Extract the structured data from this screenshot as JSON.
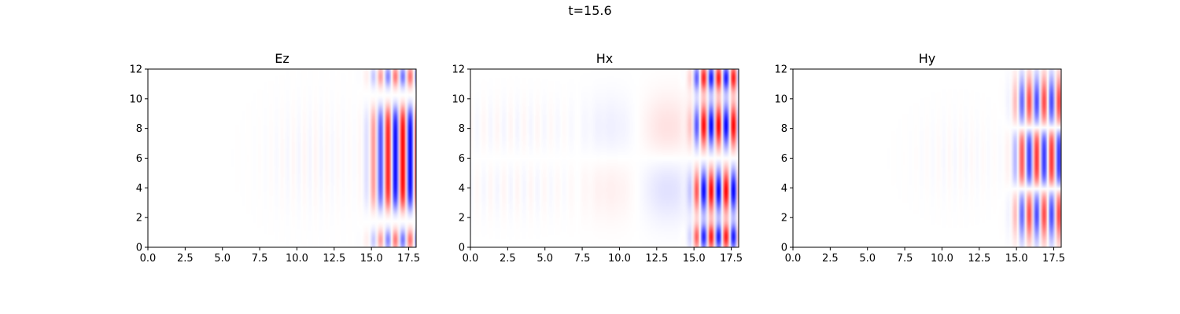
{
  "figure": {
    "suptitle": "t=15.6"
  },
  "colors": {
    "positive": "#ff0000",
    "negative": "#0000ff",
    "zero": "#ffffff",
    "axis": "#000000"
  },
  "chart_data": [
    {
      "type": "heatmap",
      "title": "Ez",
      "colormap": "bwr",
      "xlim": [
        0,
        18
      ],
      "ylim": [
        0,
        12
      ],
      "xticks": [
        "0.0",
        "2.5",
        "5.0",
        "7.5",
        "10.0",
        "12.5",
        "15.0",
        "17.5"
      ],
      "yticks": [
        "0",
        "2",
        "4",
        "6",
        "8",
        "10",
        "12"
      ],
      "grid": false,
      "field": {
        "wave_front_x": 15.0,
        "wavelength": 1.0,
        "vertical_mode": "single lobe centered at y=6 with weak sign-flipped edges near y=0 and y=12",
        "peak_amplitude": 1.0,
        "trail_amplitude": 0.04
      }
    },
    {
      "type": "heatmap",
      "title": "Hx",
      "colormap": "bwr",
      "xlim": [
        0,
        18
      ],
      "ylim": [
        0,
        12
      ],
      "xticks": [
        "0.0",
        "2.5",
        "5.0",
        "7.5",
        "10.0",
        "12.5",
        "15.0",
        "17.5"
      ],
      "yticks": [
        "0",
        "2",
        "4",
        "6",
        "8",
        "10",
        "12"
      ],
      "grid": false,
      "field": {
        "wave_front_x": 15.0,
        "wavelength": 1.0,
        "vertical_mode": "antisymmetric lobes about y=6 with extra lobes near y=1 and y=11",
        "peak_amplitude": 1.0,
        "trail_amplitude": 0.1
      }
    },
    {
      "type": "heatmap",
      "title": "Hy",
      "colormap": "bwr",
      "xlim": [
        0,
        18
      ],
      "ylim": [
        0,
        12
      ],
      "xticks": [
        "0.0",
        "2.5",
        "5.0",
        "7.5",
        "10.0",
        "12.5",
        "15.0",
        "17.5"
      ],
      "yticks": [
        "0",
        "2",
        "4",
        "6",
        "8",
        "10",
        "12"
      ],
      "grid": false,
      "field": {
        "wave_front_x": 15.0,
        "wavelength": 1.0,
        "vertical_mode": "central lobe y=4..8 with opposite-sign lobes above and below",
        "peak_amplitude": 0.8,
        "trail_amplitude": 0.03
      }
    }
  ]
}
